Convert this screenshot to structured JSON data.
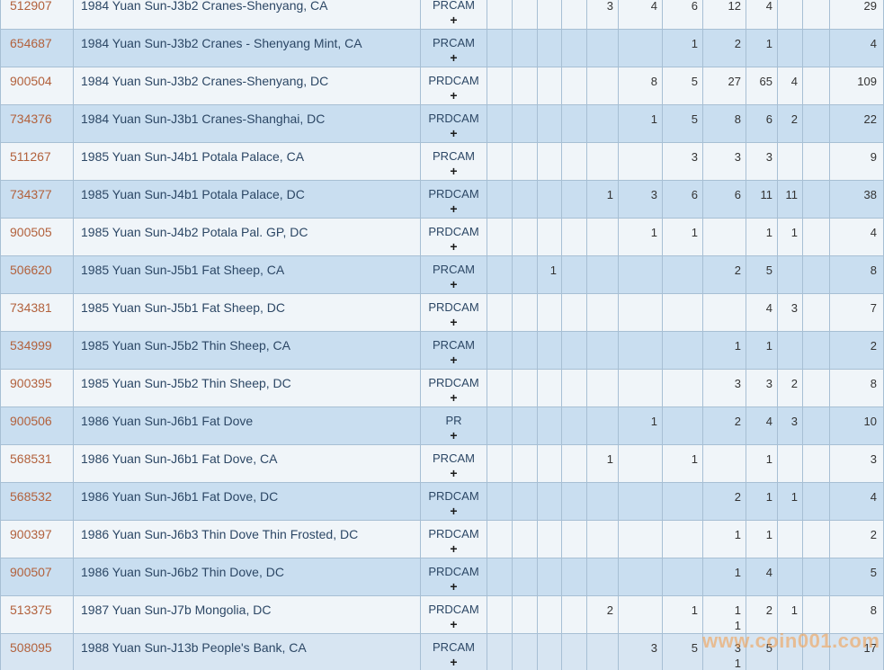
{
  "watermark": {
    "text": "www.coin001.com",
    "color": "#f49a46"
  },
  "table": {
    "rows": [
      {
        "id": "512907",
        "desc": "1984 Yuan Sun-J3b2 Cranes-Shenyang, CA",
        "desig": "PRCAM",
        "plus": "+",
        "grades": [
          "",
          "",
          "",
          "",
          "3",
          "4",
          "6",
          "12",
          "4",
          "",
          ""
        ],
        "total": "29"
      },
      {
        "id": "654687",
        "desc": "1984 Yuan Sun-J3b2 Cranes - Shenyang Mint, CA",
        "desig": "PRCAM",
        "plus": "+",
        "grades": [
          "",
          "",
          "",
          "",
          "",
          "",
          "1",
          "2",
          "1",
          "",
          ""
        ],
        "total": "4"
      },
      {
        "id": "900504",
        "desc": "1984 Yuan Sun-J3b2 Cranes-Shenyang, DC",
        "desig": "PRDCAM",
        "plus": "+",
        "grades": [
          "",
          "",
          "",
          "",
          "",
          "8",
          "5",
          "27",
          "65",
          "4",
          ""
        ],
        "total": "109"
      },
      {
        "id": "734376",
        "desc": "1984 Yuan Sun-J3b1 Cranes-Shanghai, DC",
        "desig": "PRDCAM",
        "plus": "+",
        "grades": [
          "",
          "",
          "",
          "",
          "",
          "1",
          "5",
          "8",
          "6",
          "2",
          ""
        ],
        "total": "22"
      },
      {
        "id": "511267",
        "desc": "1985 Yuan Sun-J4b1 Potala Palace, CA",
        "desig": "PRCAM",
        "plus": "+",
        "grades": [
          "",
          "",
          "",
          "",
          "",
          "",
          "3",
          "3",
          "3",
          "",
          ""
        ],
        "total": "9"
      },
      {
        "id": "734377",
        "desc": "1985 Yuan Sun-J4b1 Potala Palace, DC",
        "desig": "PRDCAM",
        "plus": "+",
        "grades": [
          "",
          "",
          "",
          "",
          "1",
          "3",
          "6",
          "6",
          "11",
          "11",
          ""
        ],
        "total": "38"
      },
      {
        "id": "900505",
        "desc": "1985 Yuan Sun-J4b2 Potala Pal. GP, DC",
        "desig": "PRDCAM",
        "plus": "+",
        "grades": [
          "",
          "",
          "",
          "",
          "",
          "1",
          "1",
          "",
          "1",
          "1",
          ""
        ],
        "total": "4"
      },
      {
        "id": "506620",
        "desc": "1985 Yuan Sun-J5b1 Fat Sheep, CA",
        "desig": "PRCAM",
        "plus": "+",
        "grades": [
          "",
          "",
          "1",
          "",
          "",
          "",
          "",
          "2",
          "5",
          "",
          ""
        ],
        "total": "8"
      },
      {
        "id": "734381",
        "desc": "1985 Yuan Sun-J5b1 Fat Sheep, DC",
        "desig": "PRDCAM",
        "plus": "+",
        "grades": [
          "",
          "",
          "",
          "",
          "",
          "",
          "",
          "",
          "4",
          "3",
          ""
        ],
        "total": "7"
      },
      {
        "id": "534999",
        "desc": "1985 Yuan Sun-J5b2 Thin Sheep, CA",
        "desig": "PRCAM",
        "plus": "+",
        "grades": [
          "",
          "",
          "",
          "",
          "",
          "",
          "",
          "1",
          "1",
          "",
          ""
        ],
        "total": "2"
      },
      {
        "id": "900395",
        "desc": "1985 Yuan Sun-J5b2 Thin Sheep, DC",
        "desig": "PRDCAM",
        "plus": "+",
        "grades": [
          "",
          "",
          "",
          "",
          "",
          "",
          "",
          "3",
          "3",
          "2",
          ""
        ],
        "total": "8"
      },
      {
        "id": "900506",
        "desc": "1986 Yuan Sun-J6b1 Fat Dove",
        "desig": "PR",
        "plus": "+",
        "grades": [
          "",
          "",
          "",
          "",
          "",
          "1",
          "",
          "2",
          "4",
          "3",
          ""
        ],
        "total": "10"
      },
      {
        "id": "568531",
        "desc": "1986 Yuan Sun-J6b1 Fat Dove, CA",
        "desig": "PRCAM",
        "plus": "+",
        "grades": [
          "",
          "",
          "",
          "",
          "1",
          "",
          "1",
          "",
          "1",
          "",
          ""
        ],
        "total": "3"
      },
      {
        "id": "568532",
        "desc": "1986 Yuan Sun-J6b1 Fat Dove, DC",
        "desig": "PRDCAM",
        "plus": "+",
        "grades": [
          "",
          "",
          "",
          "",
          "",
          "",
          "",
          "2",
          "1",
          "1",
          ""
        ],
        "total": "4"
      },
      {
        "id": "900397",
        "desc": "1986 Yuan Sun-J6b3 Thin Dove Thin Frosted, DC",
        "desig": "PRDCAM",
        "plus": "+",
        "grades": [
          "",
          "",
          "",
          "",
          "",
          "",
          "",
          "1",
          "1",
          "",
          ""
        ],
        "total": "2"
      },
      {
        "id": "900507",
        "desc": "1986 Yuan Sun-J6b2 Thin Dove, DC",
        "desig": "PRDCAM",
        "plus": "+",
        "grades": [
          "",
          "",
          "",
          "",
          "",
          "",
          "",
          "1",
          "4",
          "",
          ""
        ],
        "total": "5"
      },
      {
        "id": "513375",
        "desc": "1987 Yuan Sun-J7b Mongolia, DC",
        "desig": "PRDCAM",
        "plus": "+",
        "grades": [
          "",
          "",
          "",
          "",
          "2",
          "",
          "1",
          "1\n1",
          "2",
          "1",
          ""
        ],
        "total": "8"
      },
      {
        "id": "508095",
        "desc": "1988 Yuan Sun-J13b People's Bank, CA",
        "desig": "PRCAM",
        "plus": "+",
        "grades": [
          "",
          "",
          "",
          "",
          "",
          "3",
          "5",
          "3\n1",
          "5",
          "",
          ""
        ],
        "total": "17"
      }
    ]
  }
}
